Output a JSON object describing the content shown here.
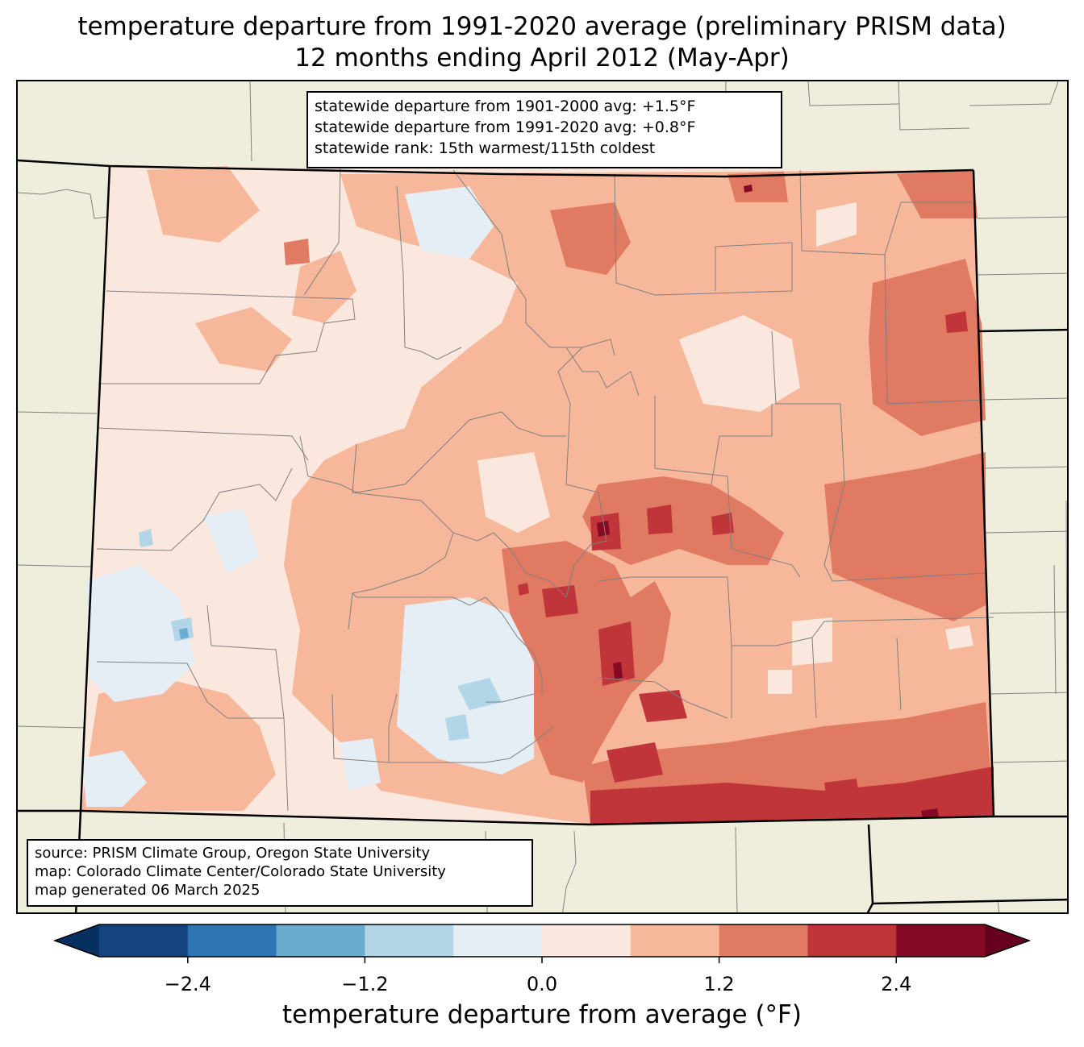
{
  "title": {
    "line1": "temperature departure from 1991-2020 average (preliminary PRISM data)",
    "line2": "12 months ending April 2012 (May-Apr)"
  },
  "stats": {
    "line1": "statewide departure from 1901-2000 avg: +1.5°F",
    "line2": "statewide departure from 1991-2020 avg: +0.8°F",
    "line3": "statewide rank: 15th warmest/115th coldest"
  },
  "source": {
    "line1": "source: PRISM Climate Group, Oregon State University",
    "line2": "map: Colorado Climate Center/Colorado State University",
    "line3": "map generated 06 March 2025"
  },
  "colorbar": {
    "label": "temperature departure from average (°F)",
    "ticks": [
      "−2.4",
      "−1.2",
      "0.0",
      "1.2",
      "2.4"
    ],
    "tick_values": [
      -2.4,
      -1.2,
      0.0,
      1.2,
      2.4
    ],
    "levels": [
      -3.0,
      -2.4,
      -1.8,
      -1.2,
      -0.6,
      0.0,
      0.6,
      1.2,
      1.8,
      2.4,
      3.0
    ],
    "colors": [
      "#14447d",
      "#2e76b3",
      "#6aacd0",
      "#b2d5e7",
      "#e5eef5",
      "#fae7dd",
      "#f6b79b",
      "#e17a62",
      "#c0353a",
      "#870a25"
    ],
    "extend_low_color": "#06305f",
    "extend_high_color": "#670020"
  },
  "map": {
    "land_color": "#efeddb",
    "border_color": "#808080",
    "state_border_color": "#000000"
  }
}
